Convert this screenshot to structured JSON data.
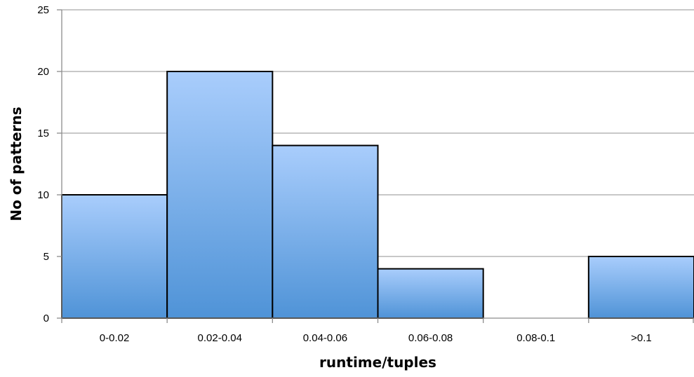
{
  "chart_data": {
    "type": "bar",
    "title": "",
    "xlabel": "runtime/tuples",
    "ylabel": "No of patterns",
    "categories": [
      "0-0.02",
      "0.02-0.04",
      "0.04-0.06",
      "0.06-0.08",
      "0.08-0.1",
      ">0.1"
    ],
    "values": [
      10,
      20,
      14,
      4,
      0,
      5
    ],
    "ylim": [
      0,
      25
    ],
    "yticks": [
      "0",
      "5",
      "10",
      "15",
      "20",
      "25"
    ],
    "grid": true,
    "legend": "none",
    "colors": {
      "bar_top": "#a9cdfc",
      "bar_bottom": "#4f93d7",
      "bar_stroke": "#000000",
      "grid": "#a6a6a6",
      "axis": "#8c8c8c"
    }
  }
}
